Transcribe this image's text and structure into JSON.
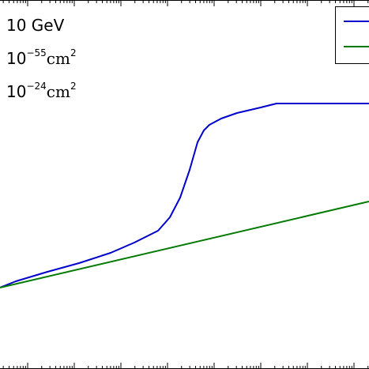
{
  "chart_data": {
    "type": "line",
    "annotations": [
      {
        "text": "10 GeV"
      },
      {
        "base": "10",
        "exp": "−55",
        "unit": "cm",
        "unit_exp": "2"
      },
      {
        "base": "10",
        "exp": "−24",
        "unit": "cm",
        "unit_exp": "2"
      }
    ],
    "grid": false,
    "legend_position": "top-right",
    "series": [
      {
        "color": "#0000cc",
        "x": [
          0,
          20,
          60,
          100,
          140,
          170,
          200,
          215,
          228,
          240,
          250,
          258,
          265,
          280,
          300,
          330,
          350,
          400,
          467
        ],
        "y": [
          364,
          356,
          344,
          333,
          320,
          307,
          292,
          275,
          250,
          215,
          180,
          165,
          158,
          150,
          143,
          136,
          131,
          131,
          131
        ]
      },
      {
        "color": "#007a00",
        "x": [
          0,
          467
        ],
        "y": [
          364,
          255
        ]
      }
    ]
  }
}
